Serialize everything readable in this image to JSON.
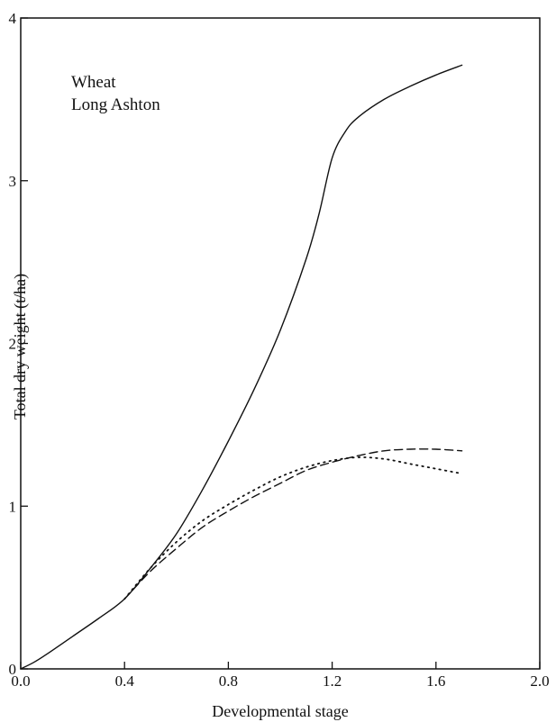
{
  "chart_data": {
    "type": "line",
    "title": "",
    "xlabel": "Developmental stage",
    "ylabel": "Total dry weight (t/ha)",
    "xlim": [
      0.0,
      2.0
    ],
    "ylim": [
      0,
      4
    ],
    "xticks": [
      "0.0",
      "0.4",
      "0.8",
      "1.2",
      "1.6",
      "2.0"
    ],
    "yticks": [
      "0",
      "1",
      "2",
      "3",
      "4"
    ],
    "grid": false,
    "annotations": [
      "Wheat",
      "Long Ashton"
    ],
    "series": [
      {
        "style": "solid",
        "x": [
          0.0,
          0.05,
          0.1,
          0.2,
          0.3,
          0.4,
          0.5,
          0.6,
          0.7,
          0.8,
          0.9,
          1.0,
          1.1,
          1.15,
          1.2,
          1.25,
          1.3,
          1.4,
          1.5,
          1.6,
          1.7
        ],
        "y": [
          0.0,
          0.04,
          0.09,
          0.2,
          0.31,
          0.43,
          0.62,
          0.83,
          1.1,
          1.4,
          1.72,
          2.08,
          2.52,
          2.8,
          3.14,
          3.3,
          3.39,
          3.5,
          3.58,
          3.65,
          3.71
        ]
      },
      {
        "style": "dashed",
        "x": [
          0.4,
          0.5,
          0.6,
          0.7,
          0.8,
          0.9,
          1.0,
          1.1,
          1.2,
          1.3,
          1.4,
          1.5,
          1.6,
          1.7
        ],
        "y": [
          0.43,
          0.6,
          0.74,
          0.87,
          0.97,
          1.06,
          1.14,
          1.22,
          1.27,
          1.31,
          1.34,
          1.35,
          1.35,
          1.34
        ]
      },
      {
        "style": "dotted",
        "x": [
          0.4,
          0.5,
          0.6,
          0.7,
          0.8,
          0.9,
          1.0,
          1.1,
          1.2,
          1.3,
          1.4,
          1.5,
          1.6,
          1.7
        ],
        "y": [
          0.43,
          0.62,
          0.78,
          0.91,
          1.01,
          1.1,
          1.18,
          1.24,
          1.28,
          1.3,
          1.29,
          1.26,
          1.23,
          1.2
        ]
      }
    ]
  }
}
